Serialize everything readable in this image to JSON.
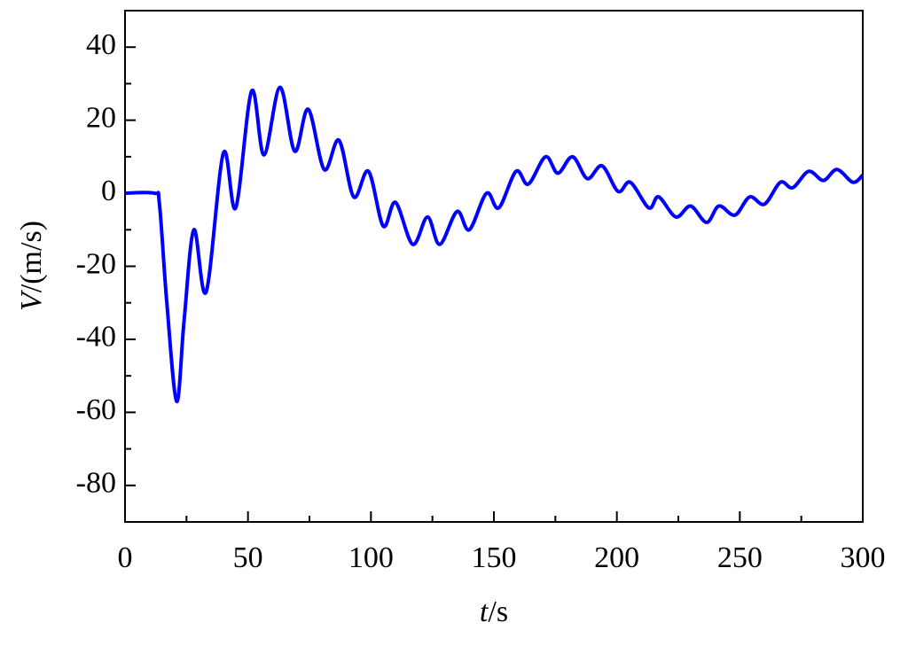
{
  "chart_data": {
    "type": "line",
    "x_label": "t/s",
    "y_label": "V/(m/s)",
    "xlim": [
      0,
      300
    ],
    "xticks": [
      0,
      50,
      100,
      150,
      200,
      250,
      300
    ],
    "xminorticks": [
      25,
      75,
      125,
      175,
      225,
      275
    ],
    "ylim": [
      -90,
      50
    ],
    "yticks": [
      -80,
      -60,
      -40,
      -20,
      0,
      20,
      40
    ],
    "yminorticks": [
      -90,
      -70,
      -50,
      -30,
      -10,
      10,
      30,
      50
    ],
    "series": [
      {
        "color": "#0000ff",
        "x": [
          0,
          12,
          14,
          17,
          21,
          24,
          28,
          33,
          40,
          45,
          51.5,
          56.5,
          63,
          69,
          74.5,
          81,
          87,
          93,
          99,
          105,
          110,
          117,
          123,
          128,
          135,
          140,
          147,
          152,
          159,
          164,
          171,
          176,
          182,
          188,
          194,
          200.5,
          205.5,
          213,
          217,
          224,
          230,
          236.5,
          241.5,
          248,
          254,
          260,
          266.5,
          271.5,
          278,
          284,
          289.5,
          296,
          300
        ],
        "values": [
          0,
          0,
          -3,
          -30,
          -57,
          -35,
          -10,
          -27,
          11,
          -4,
          28,
          10.5,
          29,
          11.5,
          23,
          6.5,
          14.5,
          -1,
          6,
          -9,
          -2.5,
          -14,
          -6.5,
          -14,
          -5,
          -10,
          0,
          -4,
          6,
          2.5,
          10,
          5.5,
          10,
          4,
          7.5,
          0.5,
          3,
          -4,
          -1,
          -6.5,
          -3.5,
          -8,
          -3.5,
          -6,
          -1,
          -3,
          3,
          1.5,
          6,
          3.5,
          6.5,
          3,
          5
        ]
      }
    ]
  }
}
